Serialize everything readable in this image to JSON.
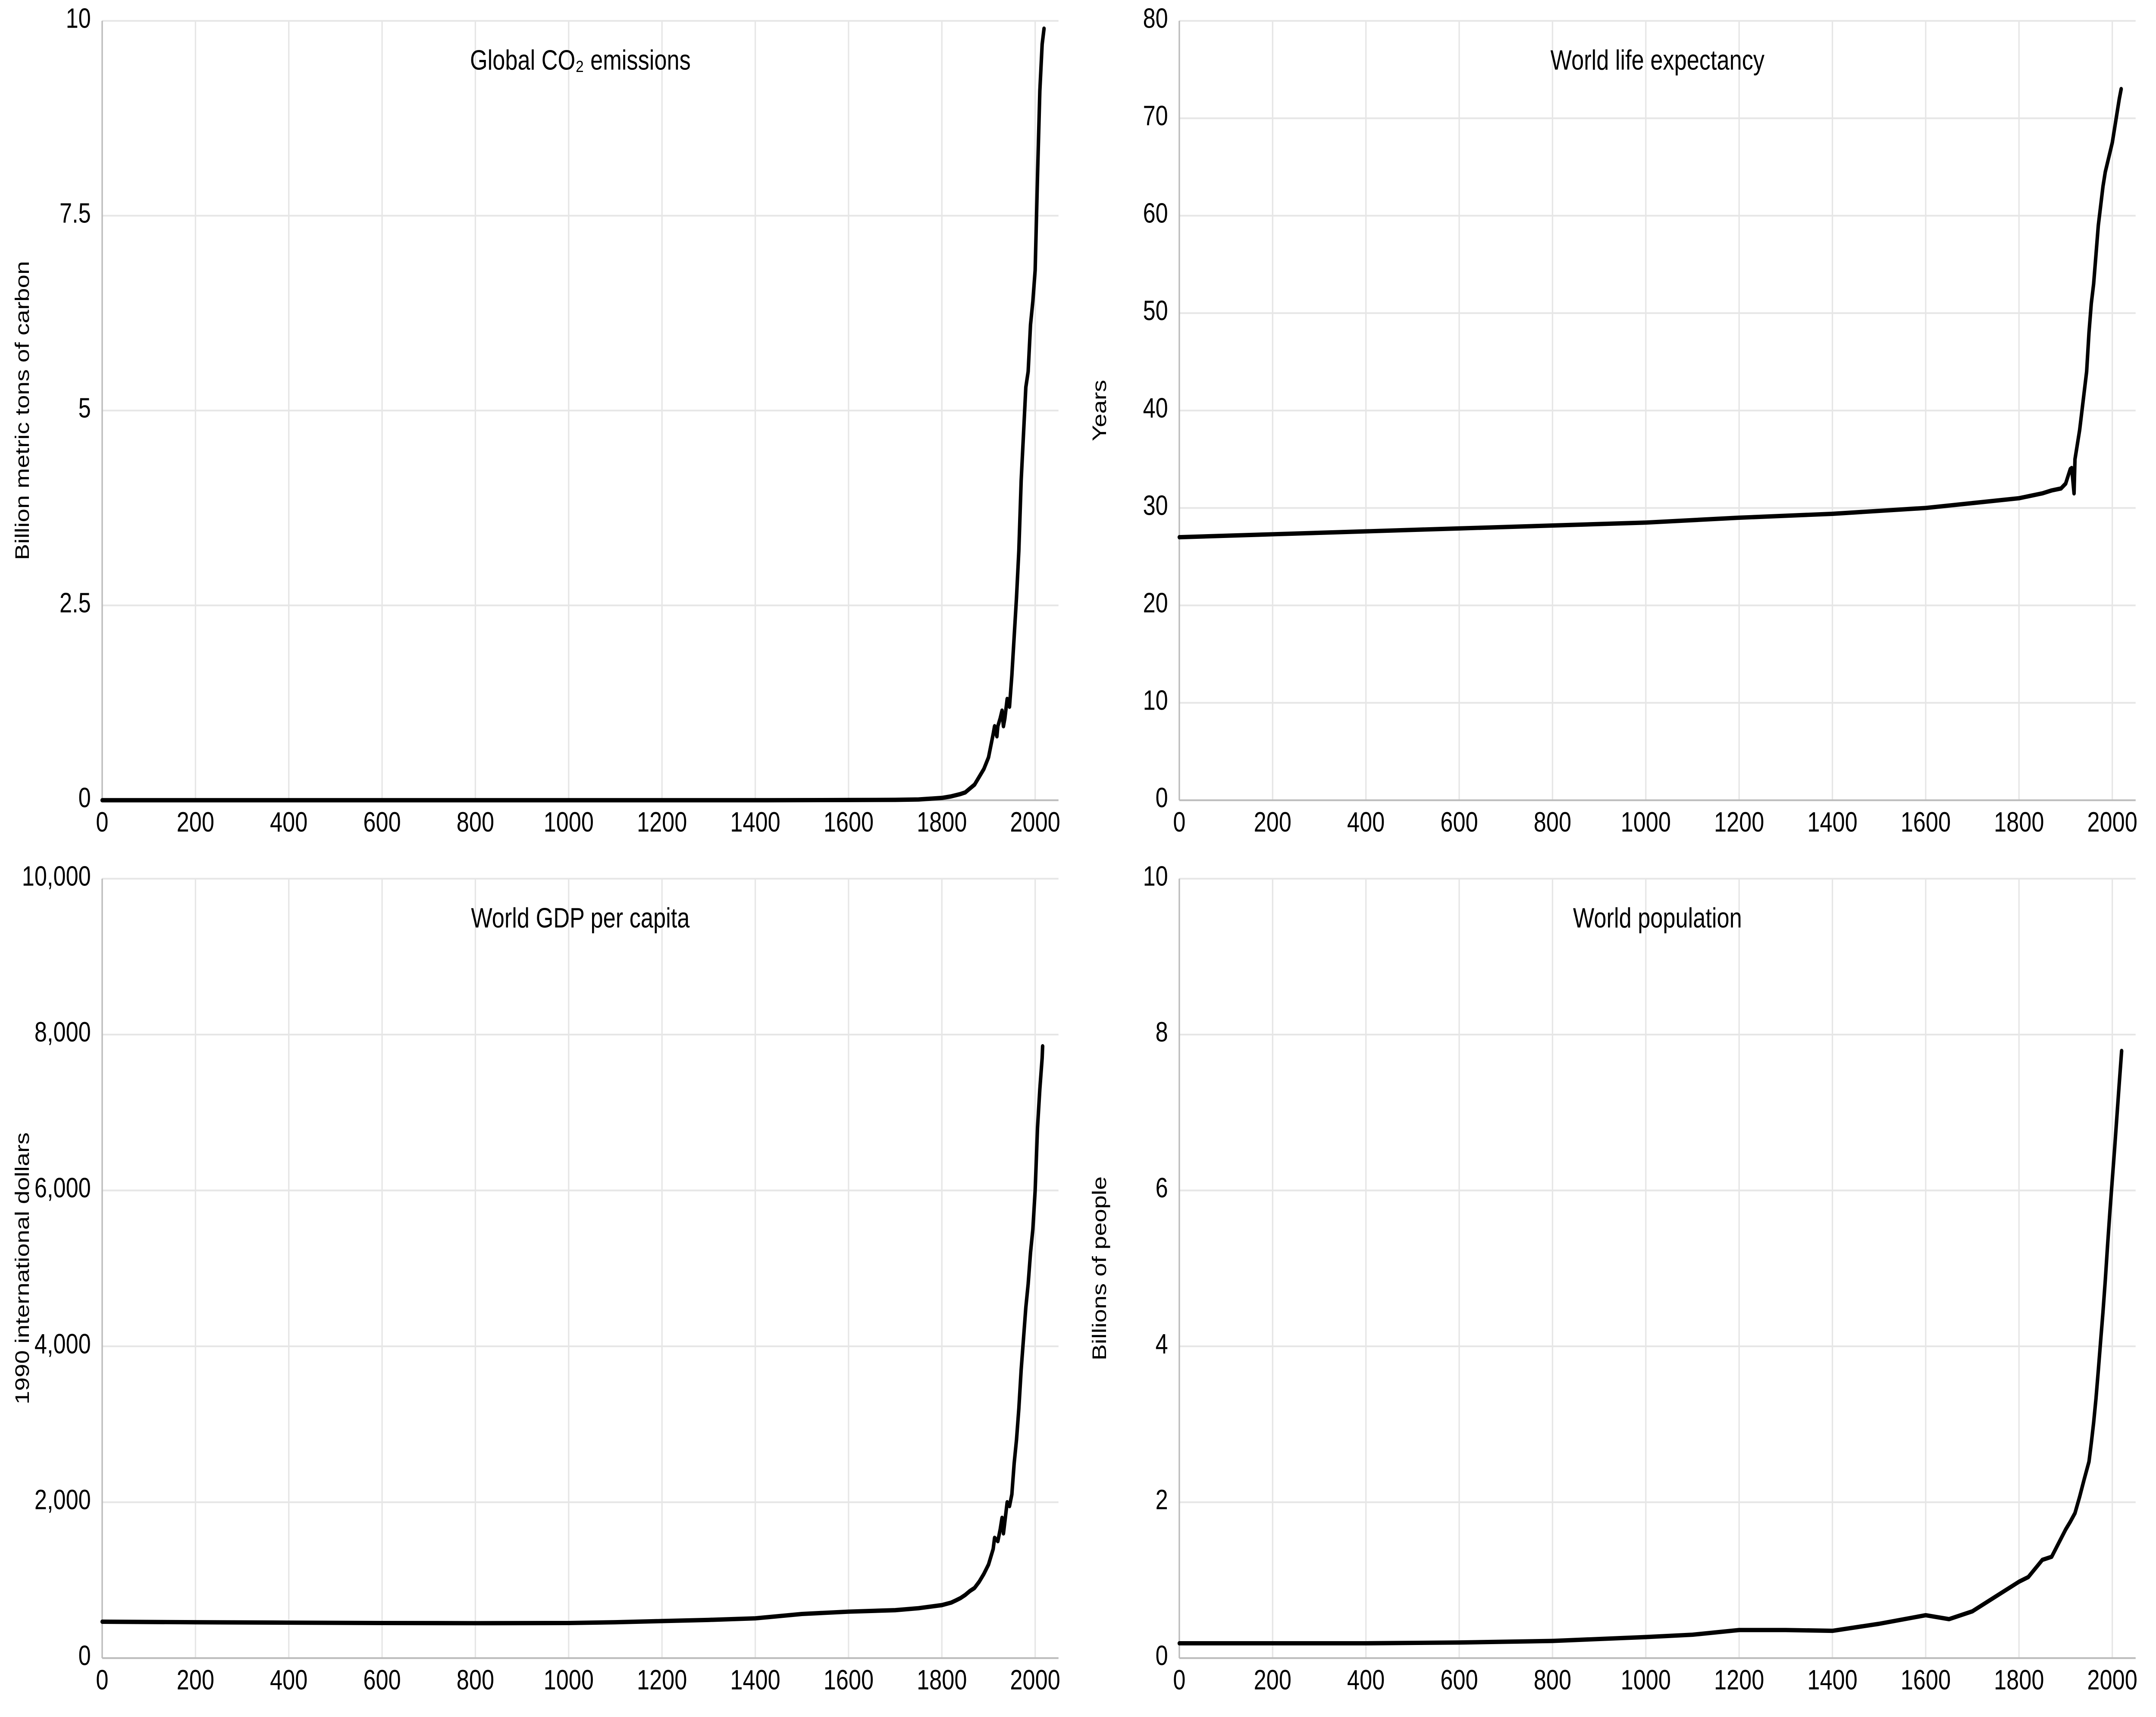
{
  "layout": {
    "rows": 2,
    "cols": 2,
    "background_color": "#ffffff",
    "grid_color": "#e6e6e6",
    "axis_color": "#bbbbbb",
    "text_color": "#000000",
    "series_color": "#000000",
    "series_width": 2.5,
    "tick_fontsize": 13,
    "ylabel_fontsize": 14,
    "title_fontsize": 16,
    "font_family": "Helvetica Neue, Helvetica, Arial, sans-serif"
  },
  "charts": [
    {
      "id": "co2",
      "type": "line",
      "title": "Global CO₂ emissions",
      "ylabel": "Billion metric tons of carbon",
      "xlim": [
        0,
        2050
      ],
      "ylim": [
        0,
        10
      ],
      "xticks": [
        0,
        200,
        400,
        600,
        800,
        1000,
        1200,
        1400,
        1600,
        1800,
        2000
      ],
      "yticks": [
        0,
        2.5,
        5,
        7.5,
        10
      ],
      "ytick_labels": [
        "0",
        "2.5",
        "5",
        "7.5",
        "10"
      ],
      "data": [
        [
          0,
          0
        ],
        [
          200,
          0
        ],
        [
          400,
          0
        ],
        [
          600,
          0
        ],
        [
          800,
          0
        ],
        [
          1000,
          0
        ],
        [
          1200,
          0
        ],
        [
          1400,
          0
        ],
        [
          1600,
          0.003
        ],
        [
          1700,
          0.005
        ],
        [
          1750,
          0.01
        ],
        [
          1800,
          0.03
        ],
        [
          1820,
          0.05
        ],
        [
          1840,
          0.08
        ],
        [
          1850,
          0.1
        ],
        [
          1860,
          0.15
        ],
        [
          1870,
          0.2
        ],
        [
          1880,
          0.3
        ],
        [
          1890,
          0.4
        ],
        [
          1900,
          0.55
        ],
        [
          1910,
          0.85
        ],
        [
          1913,
          0.95
        ],
        [
          1915,
          0.88
        ],
        [
          1918,
          0.82
        ],
        [
          1920,
          0.95
        ],
        [
          1925,
          1.05
        ],
        [
          1929,
          1.15
        ],
        [
          1932,
          0.95
        ],
        [
          1935,
          1.05
        ],
        [
          1940,
          1.3
        ],
        [
          1945,
          1.2
        ],
        [
          1950,
          1.6
        ],
        [
          1955,
          2.1
        ],
        [
          1960,
          2.6
        ],
        [
          1965,
          3.2
        ],
        [
          1970,
          4.1
        ],
        [
          1975,
          4.7
        ],
        [
          1980,
          5.3
        ],
        [
          1985,
          5.5
        ],
        [
          1990,
          6.1
        ],
        [
          1995,
          6.4
        ],
        [
          2000,
          6.8
        ],
        [
          2005,
          8.0
        ],
        [
          2010,
          9.1
        ],
        [
          2015,
          9.7
        ],
        [
          2019,
          9.9
        ]
      ]
    },
    {
      "id": "life",
      "type": "line",
      "title": "World life expectancy",
      "ylabel": "Years",
      "xlim": [
        0,
        2050
      ],
      "ylim": [
        0,
        80
      ],
      "xticks": [
        0,
        200,
        400,
        600,
        800,
        1000,
        1200,
        1400,
        1600,
        1800,
        2000
      ],
      "yticks": [
        0,
        10,
        20,
        30,
        40,
        50,
        60,
        70,
        80
      ],
      "ytick_labels": [
        "0",
        "10",
        "20",
        "30",
        "40",
        "50",
        "60",
        "70",
        "80"
      ],
      "data": [
        [
          0,
          27
        ],
        [
          200,
          27.3
        ],
        [
          400,
          27.6
        ],
        [
          600,
          27.9
        ],
        [
          800,
          28.2
        ],
        [
          1000,
          28.5
        ],
        [
          1200,
          29
        ],
        [
          1400,
          29.4
        ],
        [
          1500,
          29.7
        ],
        [
          1600,
          30
        ],
        [
          1700,
          30.5
        ],
        [
          1800,
          31
        ],
        [
          1820,
          31.2
        ],
        [
          1850,
          31.5
        ],
        [
          1870,
          31.8
        ],
        [
          1890,
          32
        ],
        [
          1900,
          32.5
        ],
        [
          1910,
          34
        ],
        [
          1913,
          34.1
        ],
        [
          1918,
          31.5
        ],
        [
          1920,
          35
        ],
        [
          1930,
          38
        ],
        [
          1940,
          42
        ],
        [
          1945,
          44
        ],
        [
          1950,
          48
        ],
        [
          1955,
          51
        ],
        [
          1960,
          53
        ],
        [
          1965,
          56
        ],
        [
          1970,
          59
        ],
        [
          1975,
          61
        ],
        [
          1980,
          63
        ],
        [
          1985,
          64.5
        ],
        [
          1990,
          65.5
        ],
        [
          1995,
          66.5
        ],
        [
          2000,
          67.5
        ],
        [
          2005,
          69
        ],
        [
          2010,
          70.5
        ],
        [
          2015,
          72
        ],
        [
          2019,
          73
        ]
      ]
    },
    {
      "id": "gdp",
      "type": "line",
      "title": "World GDP per capita",
      "ylabel": "1990 international dollars",
      "xlim": [
        0,
        2050
      ],
      "ylim": [
        0,
        10000
      ],
      "xticks": [
        0,
        200,
        400,
        600,
        800,
        1000,
        1200,
        1400,
        1600,
        1800,
        2000
      ],
      "yticks": [
        0,
        2000,
        4000,
        6000,
        8000,
        10000
      ],
      "ytick_labels": [
        "0",
        "2,000",
        "4,000",
        "6,000",
        "8,000",
        "10,000"
      ],
      "data": [
        [
          0,
          467
        ],
        [
          200,
          460
        ],
        [
          400,
          455
        ],
        [
          600,
          450
        ],
        [
          800,
          448
        ],
        [
          1000,
          450
        ],
        [
          1100,
          460
        ],
        [
          1200,
          475
        ],
        [
          1300,
          490
        ],
        [
          1400,
          510
        ],
        [
          1500,
          566
        ],
        [
          1600,
          596
        ],
        [
          1700,
          615
        ],
        [
          1750,
          640
        ],
        [
          1800,
          680
        ],
        [
          1820,
          712
        ],
        [
          1830,
          740
        ],
        [
          1840,
          770
        ],
        [
          1850,
          810
        ],
        [
          1860,
          860
        ],
        [
          1870,
          900
        ],
        [
          1880,
          980
        ],
        [
          1890,
          1080
        ],
        [
          1900,
          1200
        ],
        [
          1910,
          1400
        ],
        [
          1913,
          1543
        ],
        [
          1920,
          1500
        ],
        [
          1925,
          1650
        ],
        [
          1929,
          1800
        ],
        [
          1932,
          1600
        ],
        [
          1935,
          1750
        ],
        [
          1940,
          2000
        ],
        [
          1945,
          1950
        ],
        [
          1950,
          2100
        ],
        [
          1955,
          2500
        ],
        [
          1960,
          2800
        ],
        [
          1965,
          3200
        ],
        [
          1970,
          3700
        ],
        [
          1975,
          4100
        ],
        [
          1980,
          4500
        ],
        [
          1985,
          4800
        ],
        [
          1990,
          5200
        ],
        [
          1995,
          5500
        ],
        [
          2000,
          6000
        ],
        [
          2005,
          6800
        ],
        [
          2010,
          7300
        ],
        [
          2015,
          7700
        ],
        [
          2016,
          7850
        ]
      ]
    },
    {
      "id": "pop",
      "type": "line",
      "title": "World population",
      "ylabel": "Billions of people",
      "xlim": [
        0,
        2050
      ],
      "ylim": [
        0,
        10
      ],
      "xticks": [
        0,
        200,
        400,
        600,
        800,
        1000,
        1200,
        1400,
        1600,
        1800,
        2000
      ],
      "yticks": [
        0,
        2,
        4,
        6,
        8,
        10
      ],
      "ytick_labels": [
        "0",
        "2",
        "4",
        "6",
        "8",
        "10"
      ],
      "data": [
        [
          0,
          0.19
        ],
        [
          200,
          0.19
        ],
        [
          400,
          0.19
        ],
        [
          600,
          0.2
        ],
        [
          800,
          0.22
        ],
        [
          1000,
          0.27
        ],
        [
          1100,
          0.3
        ],
        [
          1200,
          0.36
        ],
        [
          1300,
          0.36
        ],
        [
          1400,
          0.35
        ],
        [
          1500,
          0.44
        ],
        [
          1600,
          0.55
        ],
        [
          1650,
          0.5
        ],
        [
          1700,
          0.6
        ],
        [
          1750,
          0.79
        ],
        [
          1800,
          0.98
        ],
        [
          1820,
          1.04
        ],
        [
          1850,
          1.26
        ],
        [
          1870,
          1.3
        ],
        [
          1900,
          1.65
        ],
        [
          1910,
          1.75
        ],
        [
          1920,
          1.86
        ],
        [
          1930,
          2.07
        ],
        [
          1940,
          2.3
        ],
        [
          1950,
          2.52
        ],
        [
          1955,
          2.76
        ],
        [
          1960,
          3.02
        ],
        [
          1965,
          3.33
        ],
        [
          1970,
          3.69
        ],
        [
          1975,
          4.07
        ],
        [
          1980,
          4.44
        ],
        [
          1985,
          4.85
        ],
        [
          1990,
          5.31
        ],
        [
          1995,
          5.74
        ],
        [
          2000,
          6.14
        ],
        [
          2005,
          6.54
        ],
        [
          2010,
          6.96
        ],
        [
          2015,
          7.38
        ],
        [
          2020,
          7.79
        ]
      ]
    }
  ]
}
